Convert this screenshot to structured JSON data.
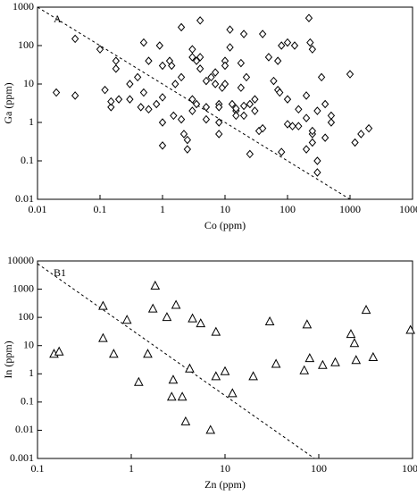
{
  "chart_data": [
    {
      "type": "scatter",
      "annotation": "A",
      "x_label": "Co (ppm)",
      "y_label": "Ga (ppm)",
      "marker": "diamond",
      "color": "#000000",
      "log_x": true,
      "log_y": true,
      "xlim": [
        0.01,
        10000
      ],
      "ylim": [
        0.01,
        1000
      ],
      "xticks": [
        0.01,
        0.1,
        1,
        10,
        100,
        1000,
        10000
      ],
      "yticks": [
        0.01,
        0.1,
        1,
        10,
        100,
        1000
      ],
      "reference_line": {
        "x": [
          0.01,
          1000
        ],
        "y": [
          1000,
          0.01
        ]
      },
      "x": [
        0.02,
        0.04,
        0.04,
        0.1,
        0.12,
        0.15,
        0.15,
        0.18,
        0.18,
        0.2,
        0.3,
        0.3,
        0.4,
        0.45,
        0.5,
        0.5,
        0.6,
        0.6,
        0.8,
        0.9,
        1,
        1,
        1,
        1,
        1.3,
        1.4,
        1.5,
        1.6,
        2,
        2,
        2,
        2.2,
        2.5,
        2.5,
        3,
        3,
        3,
        3,
        3.5,
        3.5,
        4,
        4,
        4,
        5,
        5,
        5,
        6,
        7,
        7,
        8,
        8,
        8,
        8,
        9,
        10,
        10,
        10,
        12,
        12,
        13,
        15,
        15,
        15,
        18,
        18,
        20,
        20,
        20,
        22,
        25,
        25,
        30,
        35,
        40,
        40,
        50,
        60,
        70,
        70,
        75,
        80,
        80,
        100,
        100,
        100,
        120,
        130,
        150,
        150,
        200,
        200,
        220,
        230,
        250,
        250,
        250,
        300,
        300,
        300,
        350,
        400,
        400,
        500,
        500,
        1000,
        1200,
        1500,
        2000,
        200,
        250,
        30
      ],
      "y": [
        6,
        150,
        5,
        80,
        7,
        2.5,
        3.5,
        40,
        25,
        4,
        4,
        10,
        15,
        2.5,
        120,
        6,
        40,
        2.2,
        3,
        100,
        30,
        0.25,
        1,
        4.5,
        40,
        30,
        1.5,
        10,
        300,
        15,
        1.2,
        0.5,
        0.2,
        0.35,
        80,
        50,
        4,
        2,
        40,
        3,
        25,
        450,
        50,
        1.2,
        2.5,
        12,
        15,
        10,
        20,
        3,
        2.5,
        1,
        0.5,
        8,
        40,
        10,
        30,
        260,
        90,
        3,
        2,
        1.5,
        2.3,
        35,
        8,
        200,
        1.5,
        2.7,
        15,
        3,
        0.15,
        2,
        0.6,
        0.7,
        200,
        50,
        12,
        40,
        7,
        6,
        100,
        0.17,
        4,
        120,
        0.9,
        0.8,
        100,
        0.8,
        2.2,
        0.2,
        5,
        520,
        120,
        0.3,
        0.5,
        80,
        2,
        0.05,
        0.1,
        15,
        0.4,
        3,
        1.5,
        1,
        18,
        0.3,
        0.5,
        0.7,
        1.3,
        0.6,
        4
      ]
    },
    {
      "type": "scatter",
      "annotation": "B1",
      "x_label": "Zn (ppm)",
      "y_label": "In (ppm)",
      "marker": "triangle",
      "color": "#000000",
      "log_x": true,
      "log_y": true,
      "xlim": [
        0.1,
        1000
      ],
      "ylim": [
        0.001,
        10000
      ],
      "xticks": [
        0.1,
        1,
        10,
        100,
        1000
      ],
      "yticks": [
        0.001,
        0.01,
        0.1,
        1,
        10,
        100,
        1000,
        10000
      ],
      "reference_line": {
        "x": [
          0.1,
          90
        ],
        "y": [
          8000,
          0.001
        ]
      },
      "x": [
        0.15,
        0.17,
        0.5,
        0.5,
        0.65,
        0.9,
        1.2,
        1.5,
        1.7,
        1.8,
        2.4,
        2.7,
        2.8,
        3,
        3.5,
        3.8,
        4.2,
        4.5,
        5.5,
        7,
        8,
        8,
        10,
        12,
        20,
        30,
        35,
        70,
        75,
        80,
        110,
        150,
        220,
        240,
        250,
        320,
        380,
        950
      ],
      "y": [
        5,
        6,
        250,
        18,
        5,
        80,
        0.5,
        5,
        200,
        1300,
        100,
        0.15,
        0.6,
        270,
        0.15,
        0.02,
        1.5,
        90,
        60,
        0.01,
        30,
        0.8,
        1.2,
        0.2,
        0.8,
        70,
        2.2,
        1.3,
        55,
        3.5,
        2,
        2.5,
        25,
        12,
        3,
        180,
        3.8,
        35
      ]
    }
  ]
}
